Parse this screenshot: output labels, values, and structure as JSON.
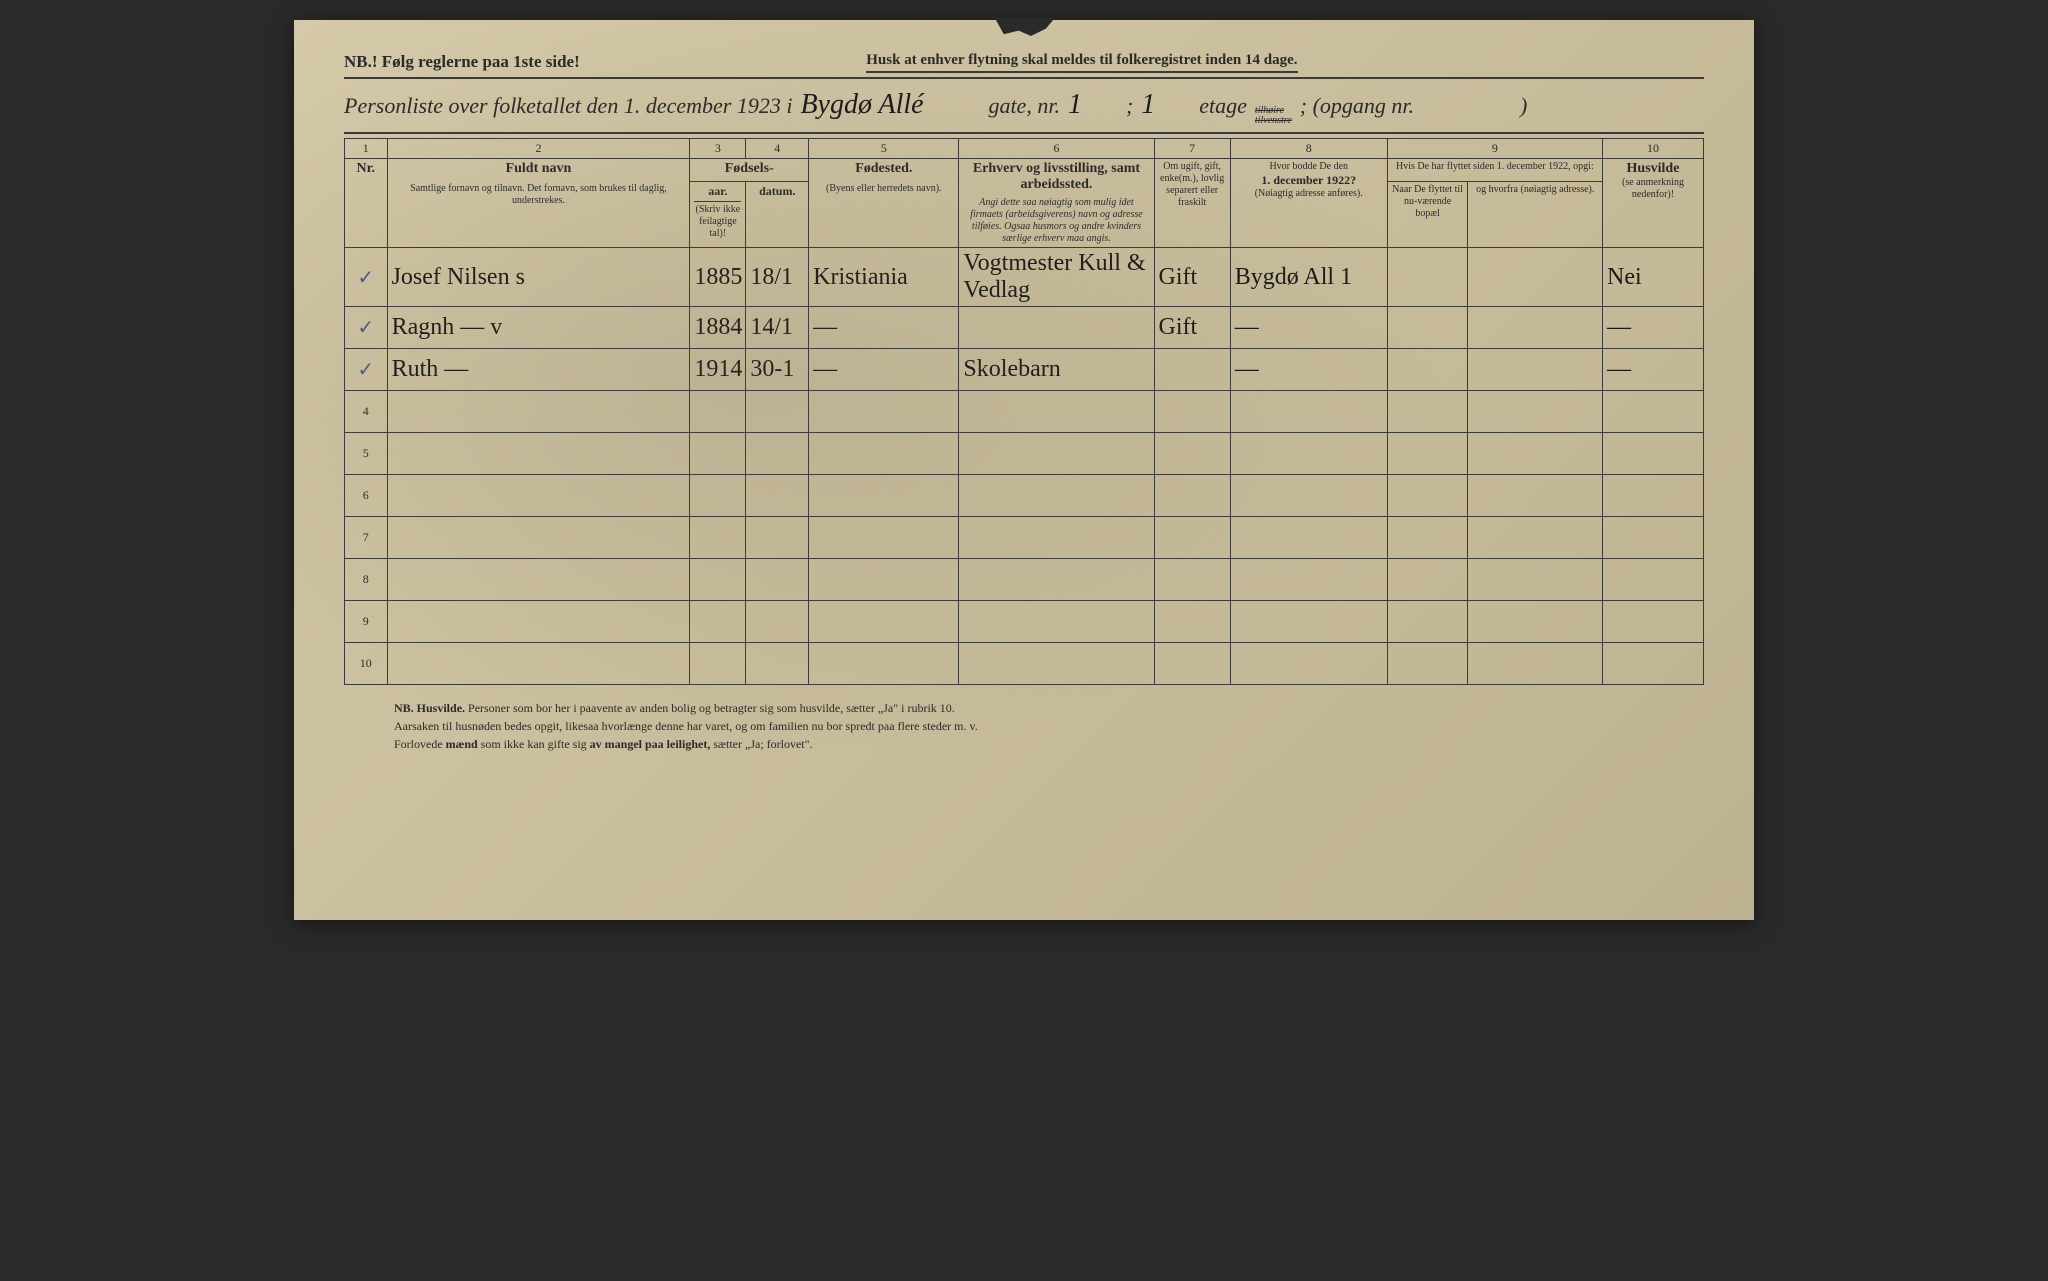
{
  "header": {
    "nb": "NB.! Følg reglerne paa 1ste side!",
    "husk": "Husk at enhver flytning skal meldes til folkeregistret inden 14 dage.",
    "title_pre": "Personliste over folketallet den 1. december 1923 i",
    "street_hw": "Bygdø Allé",
    "gate": "gate, nr.",
    "gate_nr": "1",
    "semi": ";",
    "etage_nr": "1",
    "etage": "etage",
    "tilh": "tilhøire",
    "tilv": "tilvenstre",
    "opgang": "; (opgang nr.",
    "close": ")"
  },
  "columns": {
    "c1": "1",
    "c2": "2",
    "c3": "3",
    "c4": "4",
    "c5": "5",
    "c6": "6",
    "c7": "7",
    "c8": "8",
    "c9": "9",
    "c10": "10",
    "nr": "Nr.",
    "navn": "Fuldt navn",
    "navn_sub": "Samtlige fornavn og tilnavn. Det fornavn, som brukes til daglig, understrekes.",
    "fod": "Fødsels-",
    "aar": "aar.",
    "datum": "datum.",
    "aar_sub": "(Skriv ikke feilagtige tal)!",
    "fodested": "Fødested.",
    "fodested_sub": "(Byens eller herredets navn).",
    "erhverv": "Erhverv og livsstilling, samt arbeidssted.",
    "erhverv_sub": "Angi dette saa nøiagtig som mulig idet firmaets (arbeidsgiverens) navn og adresse tilføies. Ogsaa husmors og andre kvinders særlige erhverv maa angis.",
    "gift": "Om ugift, gift, enke(m.), lovlig separert eller fraskilt",
    "bodde": "Hvor bodde De den",
    "bodde_date": "1. december 1922?",
    "bodde_sub": "(Nøiagtig adresse anføres).",
    "flyt": "Hvis De har flyttet siden 1. december 1922, opgi:",
    "naar": "Naar De flyttet til nu-værende bopæl",
    "hvorfra": "og hvorfra (nøiagtig adresse).",
    "husvilde": "Husvilde",
    "husvilde_sub": "(se anmerkning nedenfor)!"
  },
  "rows": [
    {
      "nr": "✓",
      "navn": "Josef Nilsen   s",
      "aar": "1885",
      "datum": "18/1",
      "fodested": "Kristiania",
      "erhverv": "Vogtmester Kull & Vedlag",
      "gift": "Gift",
      "bodde": "Bygdø All 1",
      "naar": "",
      "hvorfra": "",
      "husvilde": "Nei"
    },
    {
      "nr": "✓",
      "navn": "Ragnh   —     v",
      "aar": "1884",
      "datum": "14/1",
      "fodested": "—",
      "erhverv": "",
      "gift": "Gift",
      "bodde": "—",
      "naar": "",
      "hvorfra": "",
      "husvilde": "—"
    },
    {
      "nr": "✓",
      "navn": "Ruth   —",
      "aar": "1914",
      "datum": "30-1",
      "fodested": "—",
      "erhverv": "Skolebarn",
      "gift": "",
      "bodde": "—",
      "naar": "",
      "hvorfra": "",
      "husvilde": "—"
    },
    {
      "nr": "4"
    },
    {
      "nr": "5"
    },
    {
      "nr": "6"
    },
    {
      "nr": "7"
    },
    {
      "nr": "8"
    },
    {
      "nr": "9"
    },
    {
      "nr": "10"
    }
  ],
  "footnote": {
    "l1a": "NB.   Husvilde.",
    "l1b": "  Personer som bor her i paavente av anden bolig og betragter sig som husvilde, sætter „Ja\" i rubrik 10.",
    "l2": "Aarsaken til husnøden bedes opgit, likesaa hvorlænge denne har varet, og om familien nu bor spredt paa flere steder m. v.",
    "l3a": "Forlovede ",
    "l3b": "mænd",
    "l3c": " som ikke kan gifte sig ",
    "l3d": "av mangel paa leilighet,",
    "l3e": " sætter „Ja; forlovet\"."
  }
}
